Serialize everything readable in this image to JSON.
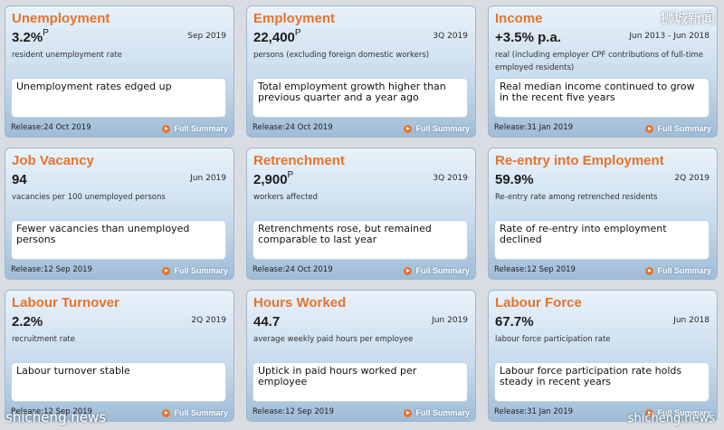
{
  "cards": [
    {
      "title": "Unemployment",
      "value": "3.2%",
      "sup": "P",
      "period": "Sep 2019",
      "desc": "resident unemployment rate",
      "highlight": "Unemployment rates edged up",
      "release": "Release:24 Oct 2019",
      "summary": "Full Summary"
    },
    {
      "title": "Employment",
      "value": "22,400",
      "sup": "P",
      "period": "3Q 2019",
      "desc": "persons (excluding foreign domestic workers)",
      "highlight": "Total employment growth higher than previous quarter and a year ago",
      "release": "Release:24 Oct 2019",
      "summary": "Full Summary"
    },
    {
      "title": "Income",
      "value": "+3.5% p.a.",
      "sup": "",
      "period": "Jun 2013 - Jun 2018",
      "desc": "real (including employer CPF contributions of full-time employed residents)",
      "highlight": "Real median income continued to grow in the recent five years",
      "release": "Release:31 Jan 2019",
      "summary": "Full Summary"
    },
    {
      "title": "Job Vacancy",
      "value": "94",
      "sup": "",
      "period": "Jun 2019",
      "desc": "vacancies per 100 unemployed persons",
      "highlight": "Fewer vacancies than unemployed persons",
      "release": "Release:12 Sep 2019",
      "summary": "Full Summary"
    },
    {
      "title": "Retrenchment",
      "value": "2,900",
      "sup": "P",
      "period": "3Q 2019",
      "desc": "workers affected",
      "highlight": "Retrenchments rose, but remained comparable to last year",
      "release": "Release:24 Oct 2019",
      "summary": "Full Summary"
    },
    {
      "title": "Re-entry into Employment",
      "value": "59.9%",
      "sup": "",
      "period": "2Q 2019",
      "desc": "Re-entry rate among retrenched residents",
      "highlight": "Rate of re-entry into employment declined",
      "release": "Release:12 Sep 2019",
      "summary": "Full Summary"
    },
    {
      "title": "Labour Turnover",
      "value": "2.2%",
      "sup": "",
      "period": "2Q 2019",
      "desc": "recruitment rate",
      "highlight": "Labour turnover stable",
      "release": "Release:12 Sep 2019",
      "summary": "Full Summary"
    },
    {
      "title": "Hours Worked",
      "value": "44.7",
      "sup": "",
      "period": "Jun 2019",
      "desc": "average weekly paid hours per employee",
      "highlight": "Uptick in paid hours worked per employee",
      "release": "Release:12 Sep 2019",
      "summary": "Full Summary"
    },
    {
      "title": "Labour Force",
      "value": "67.7%",
      "sup": "",
      "period": "Jun 2018",
      "desc": "labour force participation rate",
      "highlight": "Labour force participation rate holds steady in recent years",
      "release": "Release:31 Jan 2019",
      "summary": "Full Summary"
    }
  ],
  "watermarks": {
    "cn": "狮城新闻",
    "left": "shicheng.news",
    "right": "shicheng.news"
  },
  "colors": {
    "title": "#e8732b",
    "card_top": "#e9f2fa",
    "card_bottom": "#9fbcd7"
  }
}
